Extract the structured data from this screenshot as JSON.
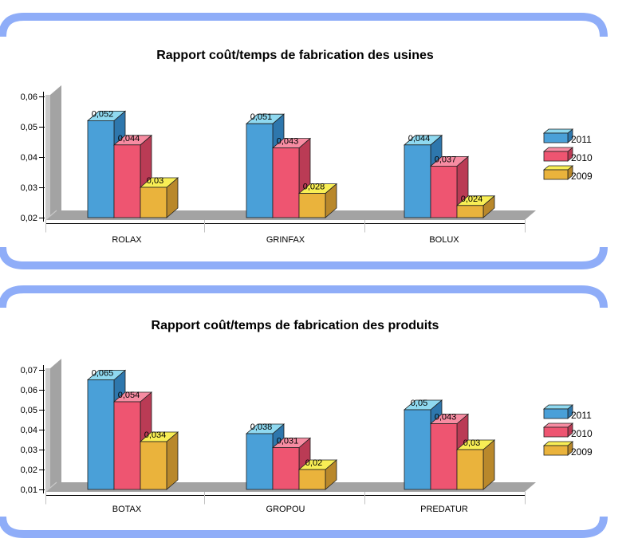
{
  "page": {
    "frame_color": "#8FADF8",
    "background": "#FFFFFF",
    "wall_color": "#A3A3A3",
    "wall_light_color": "#C8C8C8",
    "axis_color": "#000000",
    "category_tick_color": "#C2C2C2"
  },
  "legend": {
    "entries": [
      "2011",
      "2010",
      "2009"
    ]
  },
  "chart_data": [
    {
      "type": "bar",
      "style": "3d-clustered",
      "title": "Rapport coût/temps de fabrication des usines",
      "categories": [
        "ROLAX",
        "GRINFAX",
        "BOLUX"
      ],
      "series": [
        {
          "name": "2011",
          "values": [
            0.052,
            0.051,
            0.044
          ],
          "value_labels": [
            "0,052",
            "0,051",
            "0,044"
          ],
          "color_front": "#4AA0D8",
          "color_top": "#8FD9F0",
          "color_side": "#2E77AD"
        },
        {
          "name": "2010",
          "values": [
            0.044,
            0.043,
            0.037
          ],
          "value_labels": [
            "0,044",
            "0,043",
            "0,037"
          ],
          "color_front": "#EE5571",
          "color_top": "#F78CA2",
          "color_side": "#BA3B55"
        },
        {
          "name": "2009",
          "values": [
            0.03,
            0.028,
            0.024
          ],
          "value_labels": [
            "0,03",
            "0,028",
            "0,024"
          ],
          "color_front": "#EAB33C",
          "color_top": "#F8EE55",
          "color_side": "#B9882B"
        }
      ],
      "y_tick_labels": [
        "0,02",
        "0,03",
        "0,04",
        "0,05",
        "0,06"
      ],
      "ylim": [
        0.02,
        0.06
      ],
      "xlabel": "",
      "ylabel": "",
      "grid": false,
      "legend_position": "right"
    },
    {
      "type": "bar",
      "style": "3d-clustered",
      "title": "Rapport coût/temps de fabrication des produits",
      "categories": [
        "BOTAX",
        "GROPOU",
        "PREDATUR"
      ],
      "series": [
        {
          "name": "2011",
          "values": [
            0.065,
            0.038,
            0.05
          ],
          "value_labels": [
            "0,065",
            "0,038",
            "0,05"
          ],
          "color_front": "#4AA0D8",
          "color_top": "#8FD9F0",
          "color_side": "#2E77AD"
        },
        {
          "name": "2010",
          "values": [
            0.054,
            0.031,
            0.043
          ],
          "value_labels": [
            "0,054",
            "0,031",
            "0,043"
          ],
          "color_front": "#EE5571",
          "color_top": "#F78CA2",
          "color_side": "#BA3B55"
        },
        {
          "name": "2009",
          "values": [
            0.034,
            0.02,
            0.03
          ],
          "value_labels": [
            "0,034",
            "0,02",
            "0,03"
          ],
          "color_front": "#EAB33C",
          "color_top": "#F8EE55",
          "color_side": "#B9882B"
        }
      ],
      "y_tick_labels": [
        "0,01",
        "0,02",
        "0,03",
        "0,04",
        "0,05",
        "0,06",
        "0,07"
      ],
      "ylim": [
        0.01,
        0.07
      ],
      "xlabel": "",
      "ylabel": "",
      "grid": false,
      "legend_position": "right"
    }
  ]
}
